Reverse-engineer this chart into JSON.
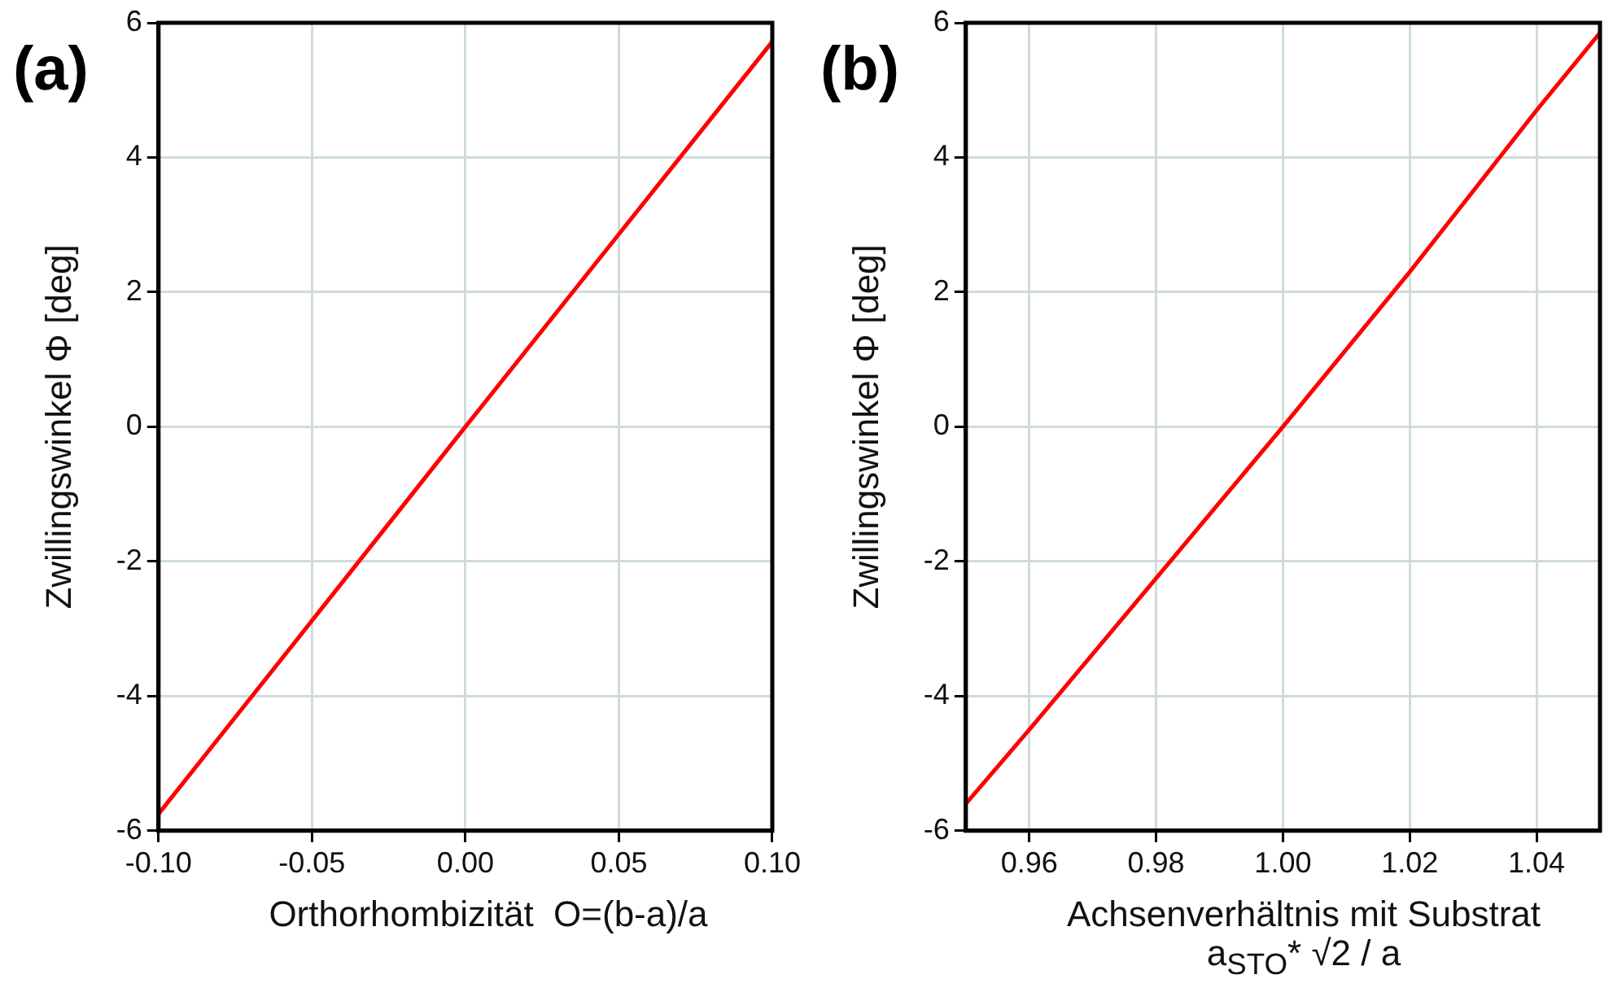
{
  "chart_data": [
    {
      "type": "line",
      "xlabel": "Orthorhombizität  O=(b-a)/a",
      "ylabel": "Zwillingswinkel Φ [deg]",
      "annotations": [
        "(a)"
      ],
      "x": [
        -0.1,
        -0.05,
        0,
        0.05,
        0.1
      ],
      "series": [
        {
          "color": "#ff0000",
          "values": [
            -5.75,
            -2.88,
            0,
            2.86,
            5.72
          ]
        }
      ],
      "xlim": [
        -0.1,
        0.1
      ],
      "xticks": [
        {
          "value": -0.1,
          "label": "-0.10"
        },
        {
          "value": -0.05,
          "label": "-0.05"
        },
        {
          "value": 0,
          "label": "0.00"
        },
        {
          "value": 0.05,
          "label": "0.05"
        },
        {
          "value": 0.1,
          "label": "0.10"
        }
      ],
      "ylim": [
        -6,
        6
      ],
      "yticks": [
        -6,
        -4,
        -2,
        0,
        2,
        4,
        6
      ],
      "grid": true,
      "legend": false,
      "marker": "none",
      "line_style": "solid"
    },
    {
      "type": "line",
      "xlabel": "Achsenverhältnis mit Substrat\na$_{STO}$* √2 / a",
      "ylabel": "Zwillingswinkel Φ [deg]",
      "annotations": [
        "(b)"
      ],
      "x": [
        0.95,
        0.96,
        0.98,
        1.0,
        1.02,
        1.04,
        1.05
      ],
      "series": [
        {
          "color": "#ff0000",
          "values": [
            -5.6,
            -4.5,
            -2.25,
            0,
            2.3,
            4.7,
            5.85
          ]
        }
      ],
      "xlim": [
        0.95,
        1.05
      ],
      "xticks": [
        {
          "value": 0.96,
          "label": "0.96"
        },
        {
          "value": 0.98,
          "label": "0.98"
        },
        {
          "value": 1.0,
          "label": "1.00"
        },
        {
          "value": 1.02,
          "label": "1.02"
        },
        {
          "value": 1.04,
          "label": "1.04"
        }
      ],
      "ylim": [
        -6,
        6
      ],
      "yticks": [
        -6,
        -4,
        -2,
        0,
        2,
        4,
        6
      ],
      "grid": true,
      "legend": false,
      "marker": "none",
      "line_style": "solid"
    }
  ]
}
